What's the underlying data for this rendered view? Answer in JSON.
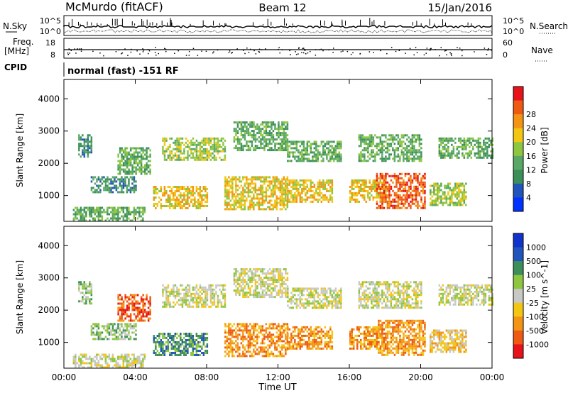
{
  "header": {
    "station": "McMurdo (fitACF)",
    "beam": "Beam 12",
    "date": "15/Jan/2016"
  },
  "status_panel": {
    "nsky_label": "N.Sky",
    "nsearch_label": "N.Search",
    "freq_label_1": "Freq.",
    "freq_label_2": "[MHz]",
    "nave_label": "Nave",
    "cpid_label": "CPID",
    "cpid_text": "normal (fast) -151 RF",
    "left_ticks_top": [
      "10^5",
      "10^0"
    ],
    "right_ticks_top": [
      "10^5",
      "10^0"
    ],
    "freq_ticks": [
      "18",
      "8"
    ],
    "nave_ticks": [
      "60",
      "0"
    ]
  },
  "colors": {
    "power": [
      "#0033ff",
      "#2255bb",
      "#3d8f5a",
      "#5aa865",
      "#8ec63f",
      "#f3c613",
      "#f39414",
      "#ef5a12",
      "#e8121a"
    ],
    "velocity": [
      "#e8121a",
      "#ef5a12",
      "#f39414",
      "#f3c613",
      "#c8c8c4",
      "#8ec63f",
      "#3d8f5a",
      "#2255bb",
      "#1133cc"
    ]
  },
  "chart_data": [
    {
      "type": "heatmap",
      "name": "power",
      "ylabel": "Slant Range [km]",
      "yticks": [
        "1000",
        "2000",
        "3000",
        "4000"
      ],
      "colorbar_label": "Power [dB]",
      "colorbar_ticks": [
        "4",
        "8",
        "12",
        "16",
        "20",
        "24",
        "28"
      ],
      "ylim": [
        200,
        4600
      ],
      "xlim": [
        "00:00",
        "24:00"
      ],
      "regions": [
        {
          "t0": 0.5,
          "t1": 4.5,
          "r0": 250,
          "r1": 650,
          "level": 3
        },
        {
          "t0": 0.8,
          "t1": 1.5,
          "r0": 2200,
          "r1": 2900,
          "level": 2
        },
        {
          "t0": 1.5,
          "t1": 4.0,
          "r0": 1100,
          "r1": 1600,
          "level": 2
        },
        {
          "t0": 3.0,
          "t1": 4.8,
          "r0": 1700,
          "r1": 2500,
          "level": 3
        },
        {
          "t0": 5.0,
          "t1": 8.0,
          "r0": 600,
          "r1": 1300,
          "level": 5
        },
        {
          "t0": 5.5,
          "t1": 9.0,
          "r0": 2100,
          "r1": 2800,
          "level": 4
        },
        {
          "t0": 9.0,
          "t1": 12.5,
          "r0": 600,
          "r1": 1600,
          "level": 5
        },
        {
          "t0": 9.5,
          "t1": 12.5,
          "r0": 2400,
          "r1": 3300,
          "level": 3
        },
        {
          "t0": 12.5,
          "t1": 15.0,
          "r0": 800,
          "r1": 1500,
          "level": 5
        },
        {
          "t0": 12.5,
          "t1": 15.5,
          "r0": 2100,
          "r1": 2700,
          "level": 3
        },
        {
          "t0": 16.0,
          "t1": 18.0,
          "r0": 800,
          "r1": 1500,
          "level": 5
        },
        {
          "t0": 17.5,
          "t1": 20.2,
          "r0": 600,
          "r1": 1700,
          "level": 7
        },
        {
          "t0": 16.5,
          "t1": 20.0,
          "r0": 2100,
          "r1": 2900,
          "level": 3
        },
        {
          "t0": 20.5,
          "t1": 22.5,
          "r0": 700,
          "r1": 1400,
          "level": 4
        },
        {
          "t0": 21.0,
          "t1": 24.0,
          "r0": 2200,
          "r1": 2800,
          "level": 3
        }
      ]
    },
    {
      "type": "heatmap",
      "name": "velocity",
      "ylabel": "Slant Range [km]",
      "yticks": [
        "1000",
        "2000",
        "3000",
        "4000"
      ],
      "colorbar_label": "Velocity [m s^-1]",
      "colorbar_ticks": [
        "1000",
        "500",
        "100",
        "25",
        "-25",
        "-100",
        "-500",
        "-1000"
      ],
      "xlabel": "Time UT",
      "xticks": [
        "00:00",
        "04:00",
        "08:00",
        "12:00",
        "16:00",
        "20:00",
        "00:00"
      ],
      "ylim": [
        200,
        4600
      ],
      "xlim": [
        "00:00",
        "24:00"
      ],
      "regions": [
        {
          "t0": 0.5,
          "t1": 4.5,
          "r0": 250,
          "r1": 650,
          "level": 4
        },
        {
          "t0": 0.8,
          "t1": 1.5,
          "r0": 2200,
          "r1": 2900,
          "level": 5
        },
        {
          "t0": 1.5,
          "t1": 4.0,
          "r0": 1100,
          "r1": 1600,
          "level": 5
        },
        {
          "t0": 3.0,
          "t1": 4.8,
          "r0": 1700,
          "r1": 2500,
          "level": 1
        },
        {
          "t0": 5.0,
          "t1": 8.0,
          "r0": 600,
          "r1": 1300,
          "level": 6
        },
        {
          "t0": 5.5,
          "t1": 9.0,
          "r0": 2100,
          "r1": 2800,
          "level": 4
        },
        {
          "t0": 9.0,
          "t1": 12.5,
          "r0": 600,
          "r1": 1600,
          "level": 2
        },
        {
          "t0": 9.5,
          "t1": 12.5,
          "r0": 2400,
          "r1": 3300,
          "level": 4
        },
        {
          "t0": 12.5,
          "t1": 15.0,
          "r0": 800,
          "r1": 1500,
          "level": 2
        },
        {
          "t0": 12.5,
          "t1": 15.5,
          "r0": 2100,
          "r1": 2700,
          "level": 4
        },
        {
          "t0": 16.0,
          "t1": 18.0,
          "r0": 800,
          "r1": 1500,
          "level": 2
        },
        {
          "t0": 17.5,
          "t1": 20.2,
          "r0": 600,
          "r1": 1700,
          "level": 2
        },
        {
          "t0": 16.5,
          "t1": 20.0,
          "r0": 2100,
          "r1": 2900,
          "level": 4
        },
        {
          "t0": 20.5,
          "t1": 22.5,
          "r0": 700,
          "r1": 1400,
          "level": 3
        },
        {
          "t0": 21.0,
          "t1": 24.0,
          "r0": 2200,
          "r1": 2800,
          "level": 4
        }
      ]
    }
  ]
}
